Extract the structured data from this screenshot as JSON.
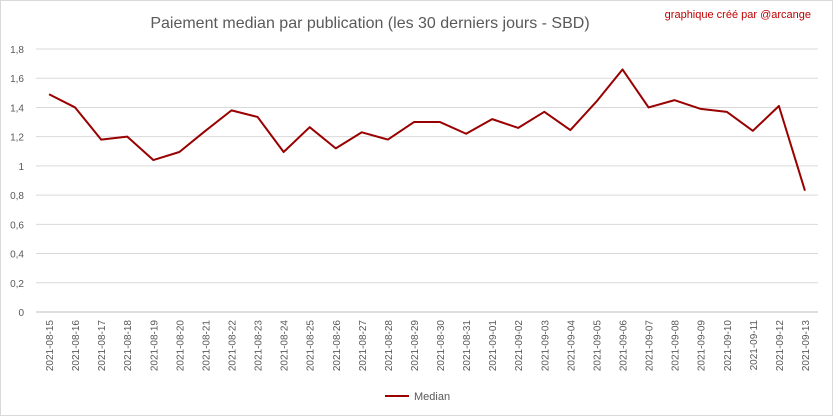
{
  "chart_data": {
    "type": "line",
    "title": "Paiement median par publication (les 30 derniers jours - SBD)",
    "credit": "graphique créé par @arcange",
    "xlabel": "",
    "ylabel": "",
    "ylim": [
      0,
      1.8
    ],
    "yticks": [
      "0",
      "0,2",
      "0,4",
      "0,6",
      "0,8",
      "1",
      "1,2",
      "1,4",
      "1,6",
      "1,8"
    ],
    "grid": true,
    "legend_position": "bottom",
    "line_color": "#990000",
    "categories": [
      "2021-08-15",
      "2021-08-16",
      "2021-08-17",
      "2021-08-18",
      "2021-08-19",
      "2021-08-20",
      "2021-08-21",
      "2021-08-22",
      "2021-08-23",
      "2021-08-24",
      "2021-08-25",
      "2021-08-26",
      "2021-08-27",
      "2021-08-28",
      "2021-08-29",
      "2021-08-30",
      "2021-08-31",
      "2021-09-01",
      "2021-09-02",
      "2021-09-03",
      "2021-09-04",
      "2021-09-05",
      "2021-09-06",
      "2021-09-07",
      "2021-09-08",
      "2021-09-09",
      "2021-09-10",
      "2021-09-11",
      "2021-09-12",
      "2021-09-13"
    ],
    "series": [
      {
        "name": "Median",
        "values": [
          1.49,
          1.4,
          1.18,
          1.2,
          1.04,
          1.095,
          1.24,
          1.38,
          1.335,
          1.095,
          1.265,
          1.12,
          1.23,
          1.18,
          1.3,
          1.3,
          1.22,
          1.32,
          1.26,
          1.37,
          1.245,
          1.44,
          1.66,
          1.4,
          1.45,
          1.39,
          1.37,
          1.24,
          1.41,
          0.83
        ]
      }
    ]
  }
}
